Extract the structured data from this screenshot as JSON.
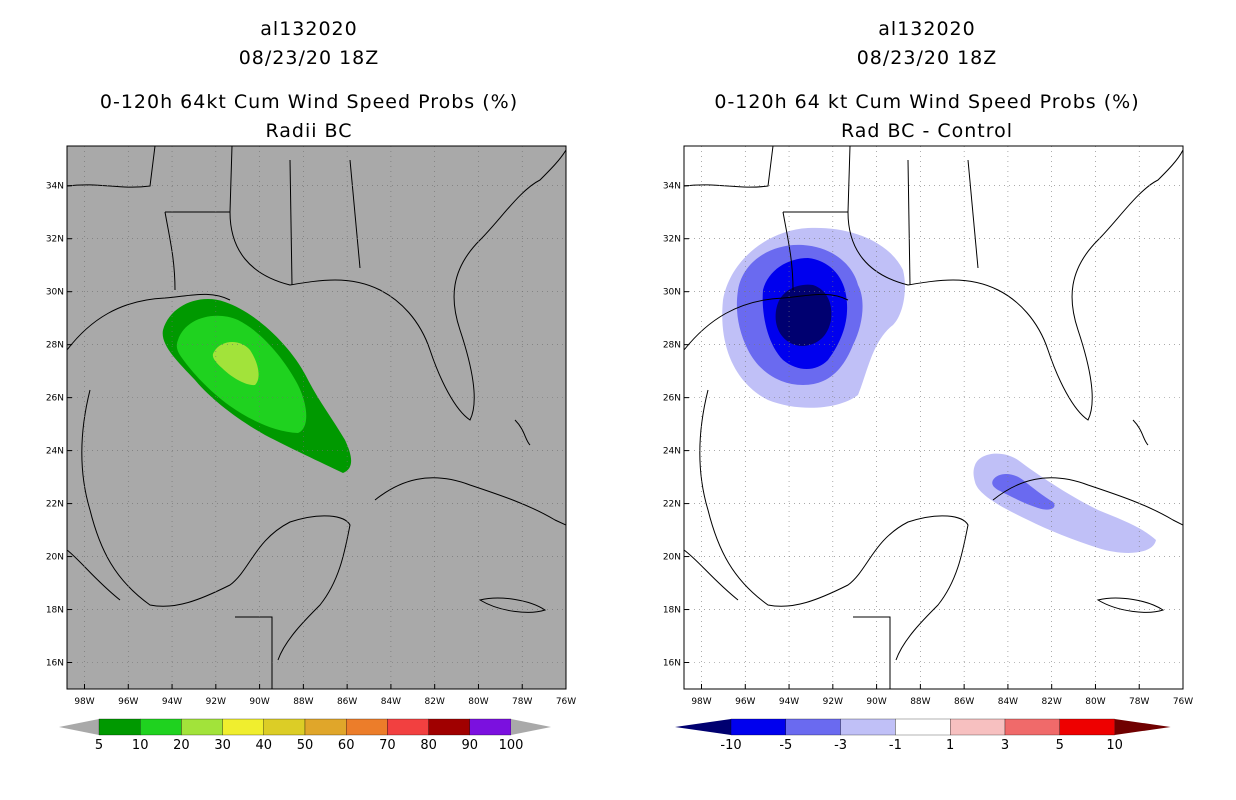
{
  "left": {
    "storm_id": "al132020",
    "datetime": "08/23/20 18Z",
    "product": "0-120h 64kt Cum Wind Speed Probs (%)",
    "subtitle": "Radii BC",
    "lat_labels": [
      "34N",
      "32N",
      "30N",
      "28N",
      "26N",
      "24N",
      "22N",
      "20N",
      "18N",
      "16N"
    ],
    "lon_labels": [
      "98W",
      "96W",
      "94W",
      "92W",
      "90W",
      "88W",
      "86W",
      "84W",
      "82W",
      "80W",
      "78W",
      "76W"
    ],
    "colorbar_labels": [
      "5",
      "10",
      "20",
      "30",
      "40",
      "50",
      "60",
      "70",
      "80",
      "90",
      "100"
    ],
    "colorbar_colors": [
      "#009900",
      "#1fd21f",
      "#a2e33a",
      "#f0ee2e",
      "#dccd26",
      "#e0a62a",
      "#ec7d2a",
      "#f24040",
      "#a00000",
      "#7b10df"
    ],
    "background_color": "#a9a9a9"
  },
  "right": {
    "storm_id": "al132020",
    "datetime": "08/23/20 18Z",
    "product": "0-120h 64 kt Cum Wind Speed Probs (%)",
    "subtitle": "Rad BC - Control",
    "lat_labels": [
      "34N",
      "32N",
      "30N",
      "28N",
      "26N",
      "24N",
      "22N",
      "20N",
      "18N",
      "16N"
    ],
    "lon_labels": [
      "98W",
      "96W",
      "94W",
      "92W",
      "90W",
      "88W",
      "86W",
      "84W",
      "82W",
      "80W",
      "78W",
      "76W"
    ],
    "colorbar_labels": [
      "-10",
      "-5",
      "-3",
      "-1",
      "1",
      "3",
      "5",
      "10"
    ],
    "colorbar_colors": [
      "#000070",
      "#0000ee",
      "#6a6af0",
      "#c0c0f7",
      "#ffffff",
      "#f7c0c0",
      "#f06a6a",
      "#ee0000",
      "#700000"
    ]
  }
}
